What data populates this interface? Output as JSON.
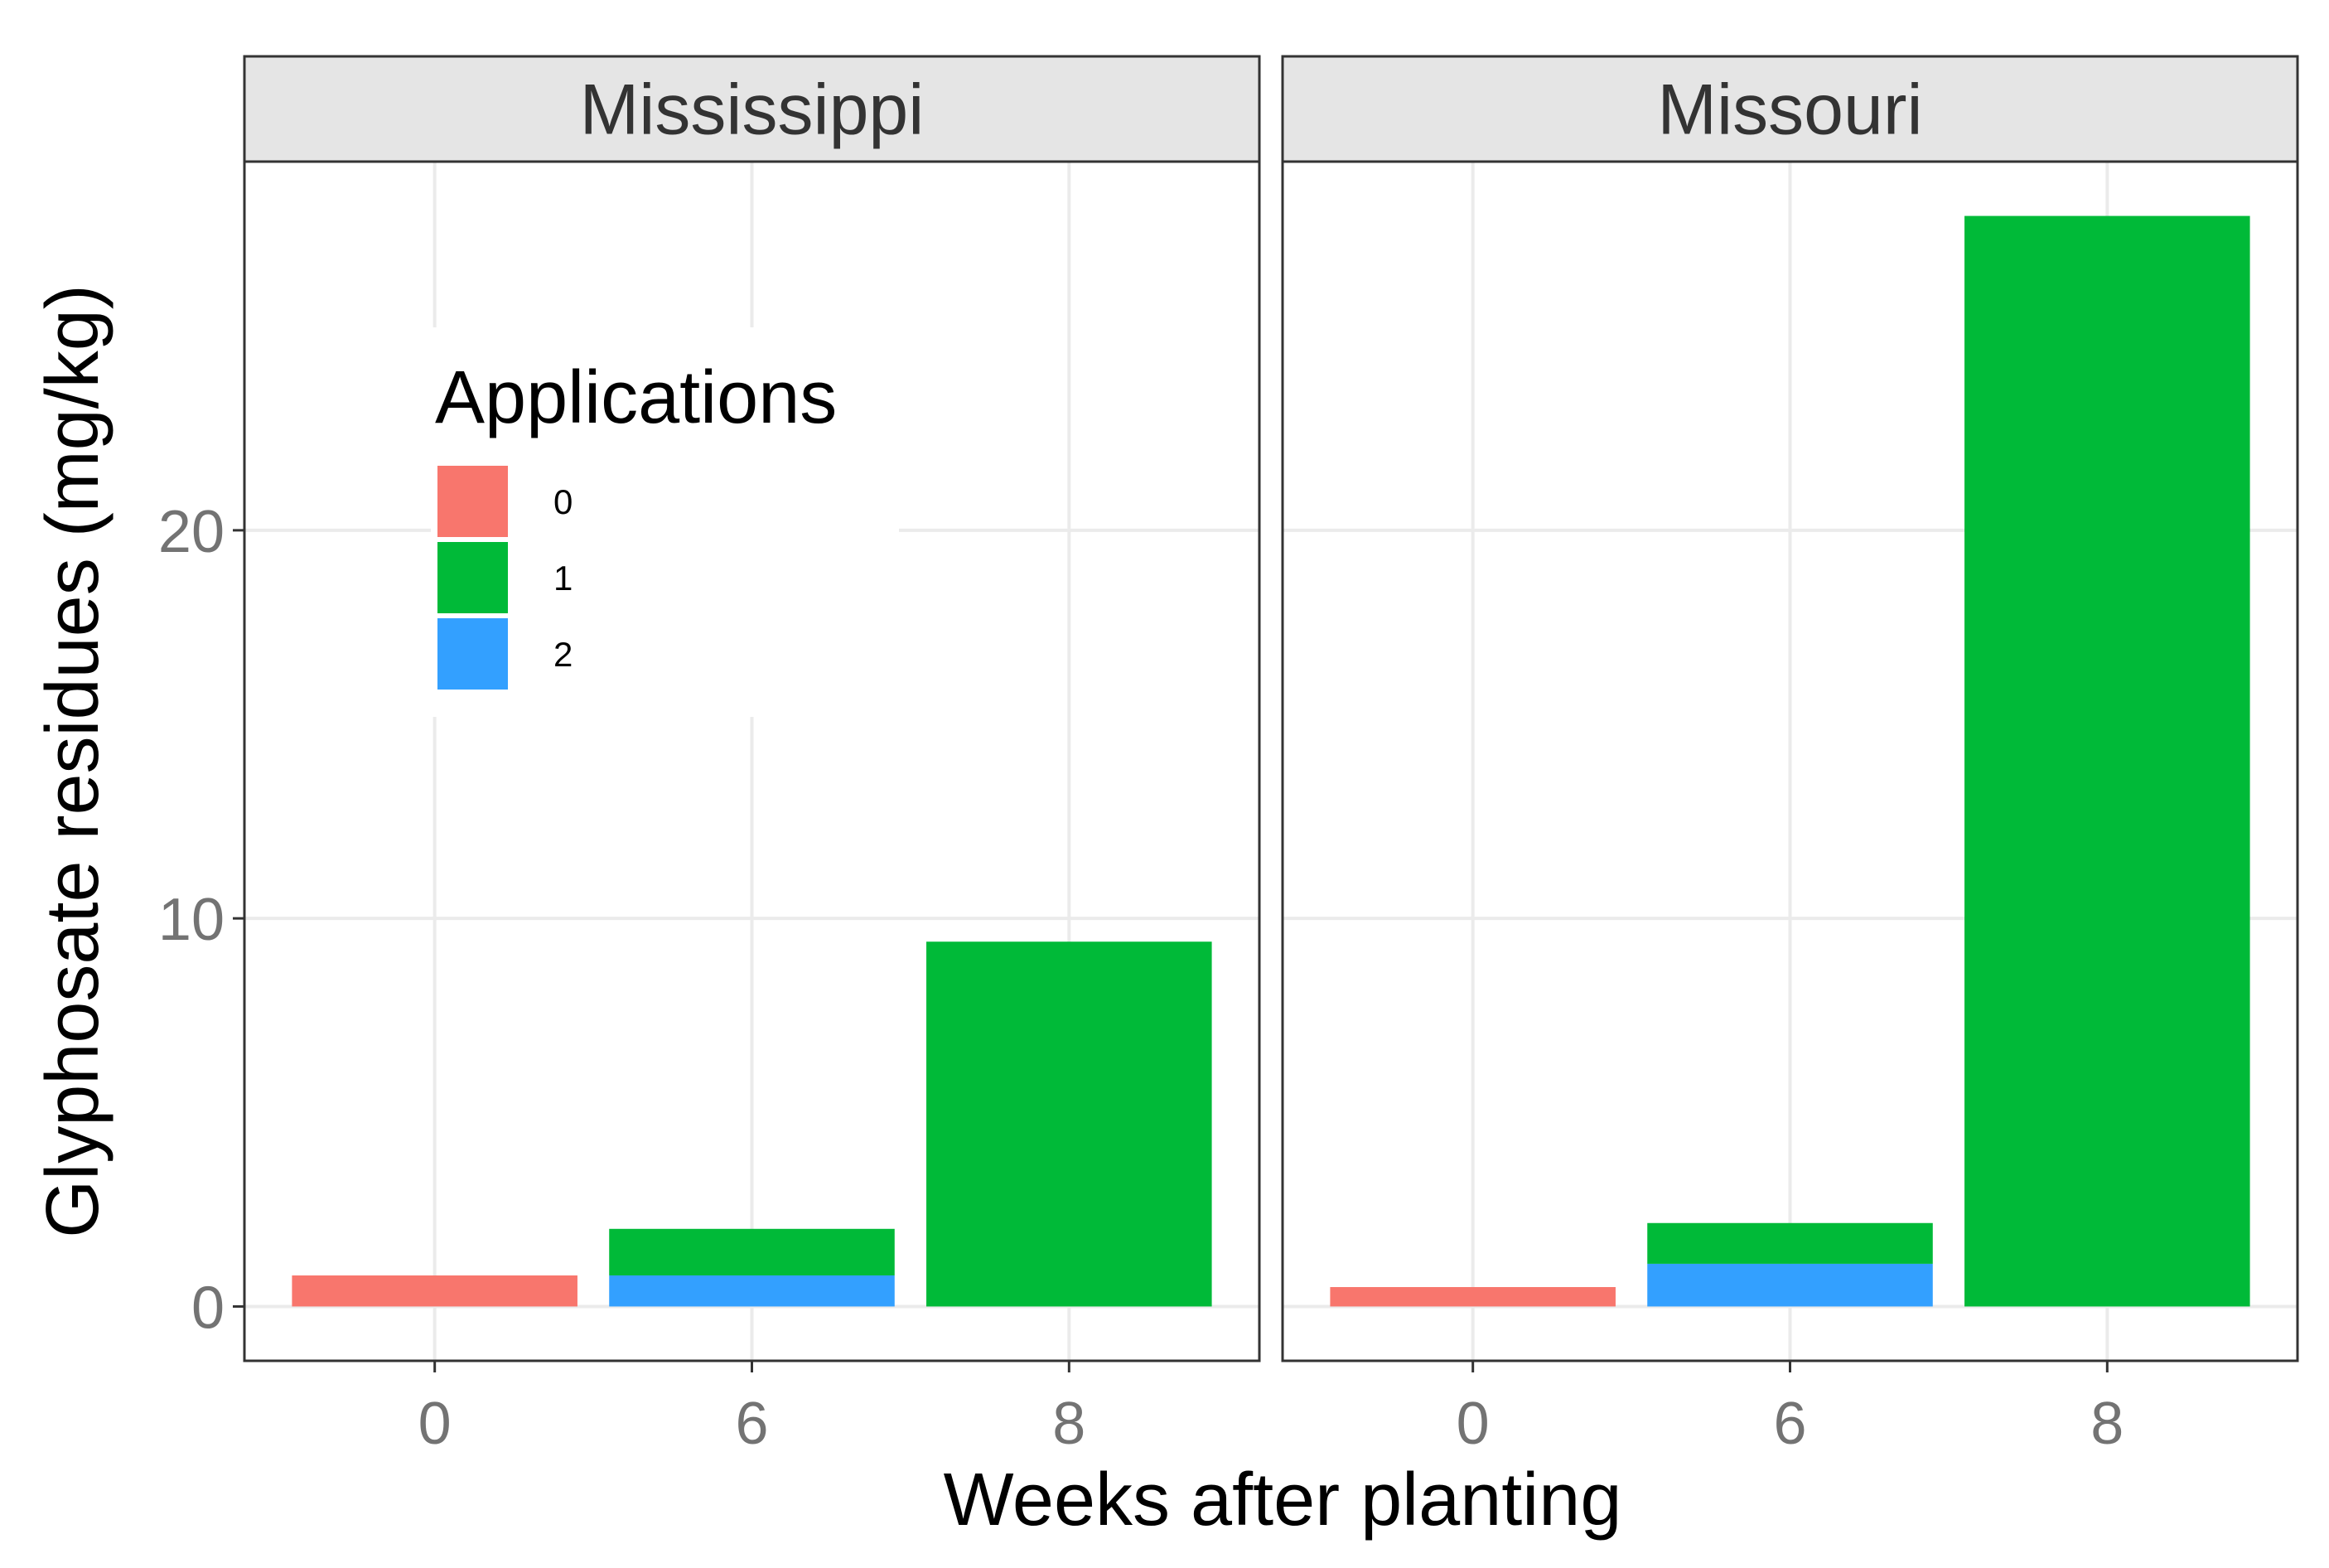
{
  "chart_data": {
    "type": "bar",
    "stacked": true,
    "xlabel": "Weeks after planting",
    "ylabel": "Glyphosate residues (mg/kg)",
    "ylim": [
      -1.4,
      29.5
    ],
    "yticks": [
      0,
      10,
      20
    ],
    "categories": [
      "0",
      "6",
      "8"
    ],
    "grid": true,
    "legend": {
      "title": "Applications",
      "placement": "inside-top-left",
      "items": [
        {
          "label": "0",
          "color": "#F8766D"
        },
        {
          "label": "1",
          "color": "#00BA38"
        },
        {
          "label": "2",
          "color": "#33A0FF"
        }
      ]
    },
    "panels": [
      {
        "title": "Mississippi",
        "bars": [
          {
            "category": "0",
            "segments": [
              {
                "application": "0",
                "value": 0.8
              }
            ]
          },
          {
            "category": "6",
            "segments": [
              {
                "application": "2",
                "value": 0.8
              },
              {
                "application": "1",
                "value": 1.2
              }
            ]
          },
          {
            "category": "8",
            "segments": [
              {
                "application": "1",
                "value": 9.4
              }
            ]
          }
        ]
      },
      {
        "title": "Missouri",
        "bars": [
          {
            "category": "0",
            "segments": [
              {
                "application": "0",
                "value": 0.5
              }
            ]
          },
          {
            "category": "6",
            "segments": [
              {
                "application": "2",
                "value": 1.1
              },
              {
                "application": "1",
                "value": 1.05
              }
            ]
          },
          {
            "category": "8",
            "segments": [
              {
                "application": "1",
                "value": 28.1
              }
            ]
          }
        ]
      }
    ]
  }
}
